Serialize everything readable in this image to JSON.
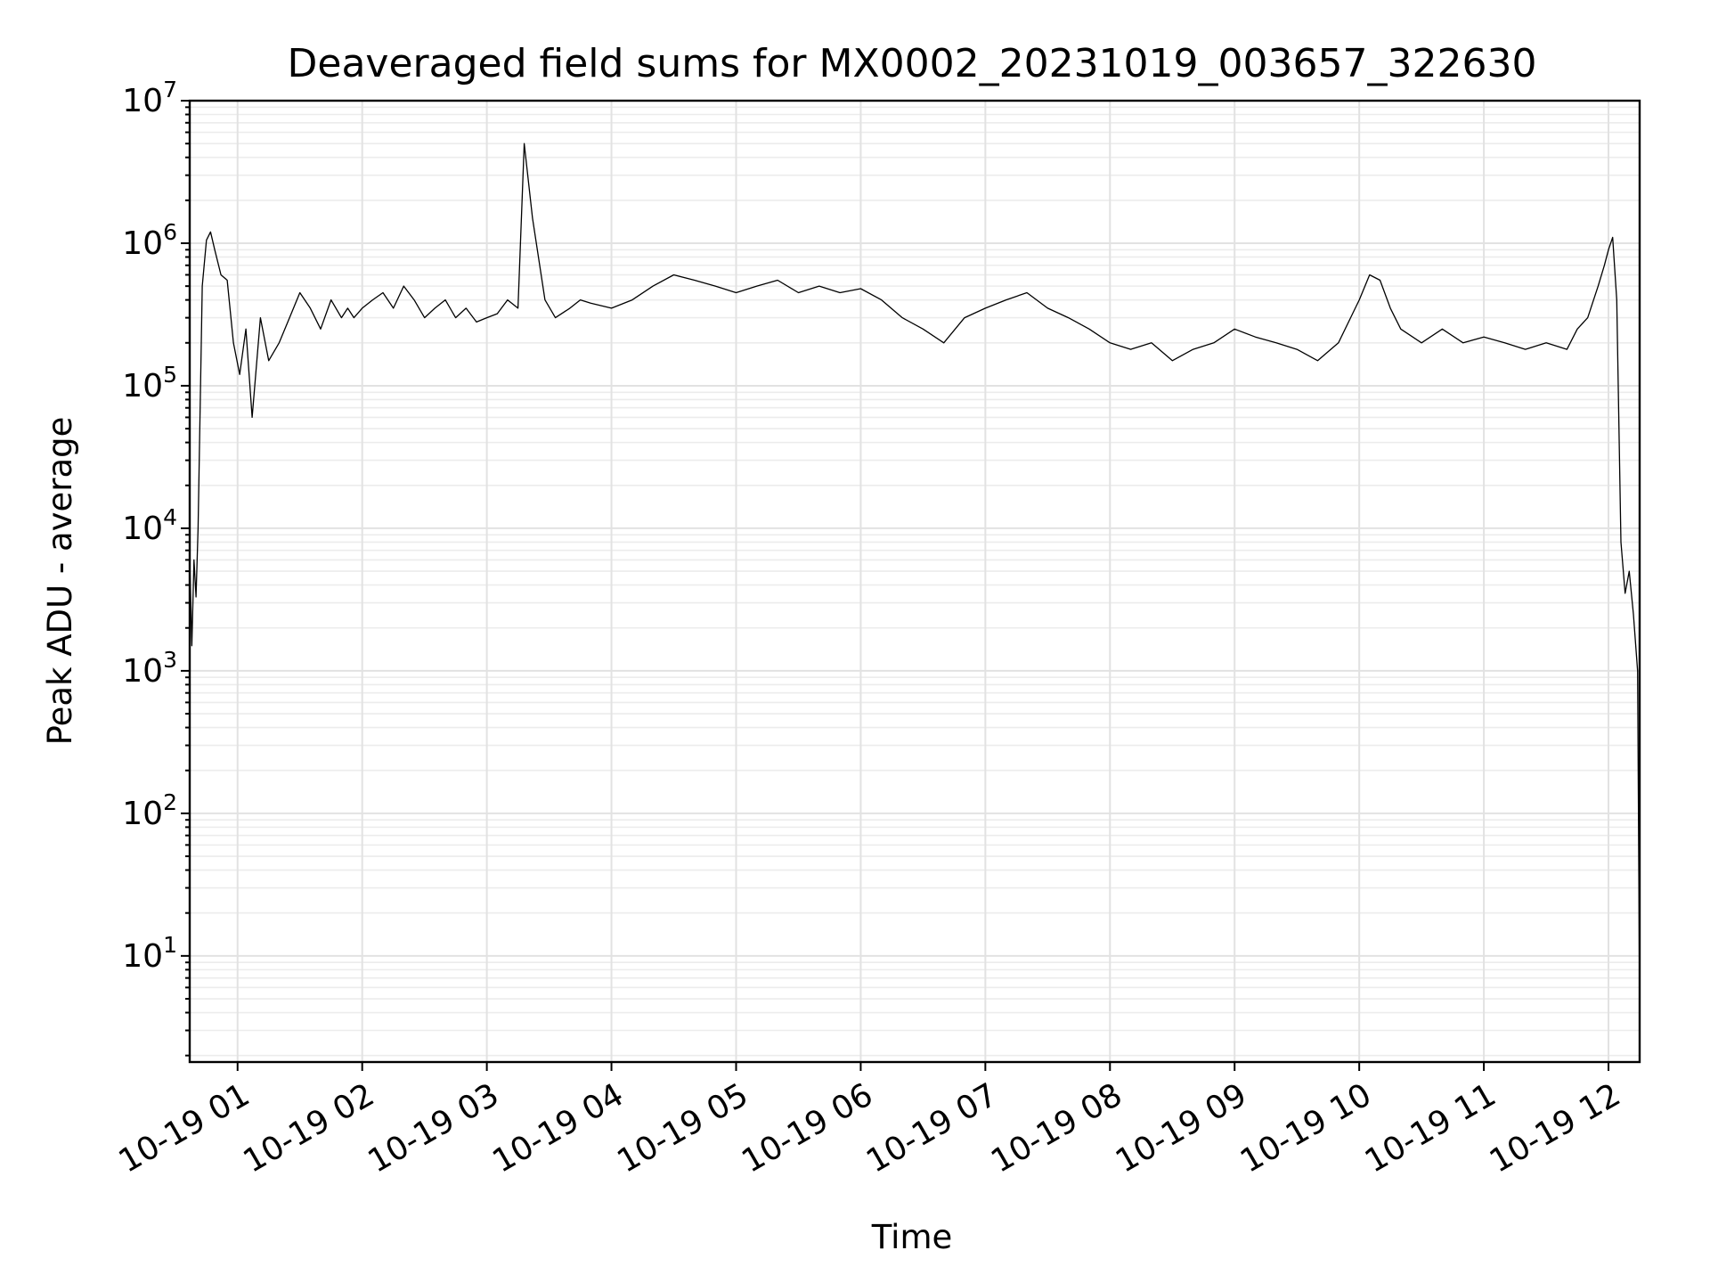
{
  "chart_data": {
    "type": "line",
    "title": "Deaveraged field sums for MX0002_20231019_003657_322630",
    "xlabel": "Time",
    "ylabel": "Peak ADU - average",
    "y_scale": "log",
    "ylim": [
      1.8,
      10000000
    ],
    "xlim": [
      "2023-10-19 00:36:57",
      "2023-10-19 12:15:00"
    ],
    "grid": "major and minor, both axes",
    "legend": "none",
    "line_color": "#000000",
    "x_ticks": [
      {
        "time": "2023-10-19 01:00",
        "label": "10-19 01"
      },
      {
        "time": "2023-10-19 02:00",
        "label": "10-19 02"
      },
      {
        "time": "2023-10-19 03:00",
        "label": "10-19 03"
      },
      {
        "time": "2023-10-19 04:00",
        "label": "10-19 04"
      },
      {
        "time": "2023-10-19 05:00",
        "label": "10-19 05"
      },
      {
        "time": "2023-10-19 06:00",
        "label": "10-19 06"
      },
      {
        "time": "2023-10-19 07:00",
        "label": "10-19 07"
      },
      {
        "time": "2023-10-19 08:00",
        "label": "10-19 08"
      },
      {
        "time": "2023-10-19 09:00",
        "label": "10-19 09"
      },
      {
        "time": "2023-10-19 10:00",
        "label": "10-19 10"
      },
      {
        "time": "2023-10-19 11:00",
        "label": "10-19 11"
      },
      {
        "time": "2023-10-19 12:00",
        "label": "10-19 12"
      }
    ],
    "y_ticks": [
      {
        "value": 10,
        "base": "10",
        "exp": "1"
      },
      {
        "value": 100,
        "base": "10",
        "exp": "2"
      },
      {
        "value": 1000,
        "base": "10",
        "exp": "3"
      },
      {
        "value": 10000,
        "base": "10",
        "exp": "4"
      },
      {
        "value": 100000,
        "base": "10",
        "exp": "5"
      },
      {
        "value": 1000000,
        "base": "10",
        "exp": "6"
      },
      {
        "value": 10000000,
        "base": "10",
        "exp": "7"
      }
    ],
    "series": [
      {
        "x": [
          "2023-10-19 00:37",
          "2023-10-19 00:38",
          "2023-10-19 00:39",
          "2023-10-19 00:40",
          "2023-10-19 00:41",
          "2023-10-19 00:43",
          "2023-10-19 00:45",
          "2023-10-19 00:47",
          "2023-10-19 00:49",
          "2023-10-19 00:52",
          "2023-10-19 00:55",
          "2023-10-19 00:58",
          "2023-10-19 01:01",
          "2023-10-19 01:04",
          "2023-10-19 01:07",
          "2023-10-19 01:11",
          "2023-10-19 01:15",
          "2023-10-19 01:20",
          "2023-10-19 01:25",
          "2023-10-19 01:30",
          "2023-10-19 01:35",
          "2023-10-19 01:40",
          "2023-10-19 01:45",
          "2023-10-19 01:50",
          "2023-10-19 01:53",
          "2023-10-19 01:56",
          "2023-10-19 02:00",
          "2023-10-19 02:05",
          "2023-10-19 02:10",
          "2023-10-19 02:15",
          "2023-10-19 02:20",
          "2023-10-19 02:25",
          "2023-10-19 02:30",
          "2023-10-19 02:35",
          "2023-10-19 02:40",
          "2023-10-19 02:45",
          "2023-10-19 02:50",
          "2023-10-19 02:55",
          "2023-10-19 03:00",
          "2023-10-19 03:05",
          "2023-10-19 03:10",
          "2023-10-19 03:15",
          "2023-10-19 03:18",
          "2023-10-19 03:22",
          "2023-10-19 03:28",
          "2023-10-19 03:33",
          "2023-10-19 03:40",
          "2023-10-19 03:45",
          "2023-10-19 03:50",
          "2023-10-19 04:00",
          "2023-10-19 04:10",
          "2023-10-19 04:20",
          "2023-10-19 04:30",
          "2023-10-19 04:40",
          "2023-10-19 04:50",
          "2023-10-19 05:00",
          "2023-10-19 05:10",
          "2023-10-19 05:20",
          "2023-10-19 05:30",
          "2023-10-19 05:40",
          "2023-10-19 05:50",
          "2023-10-19 06:00",
          "2023-10-19 06:10",
          "2023-10-19 06:20",
          "2023-10-19 06:30",
          "2023-10-19 06:40",
          "2023-10-19 06:50",
          "2023-10-19 07:00",
          "2023-10-19 07:10",
          "2023-10-19 07:20",
          "2023-10-19 07:30",
          "2023-10-19 07:40",
          "2023-10-19 07:50",
          "2023-10-19 08:00",
          "2023-10-19 08:10",
          "2023-10-19 08:20",
          "2023-10-19 08:30",
          "2023-10-19 08:40",
          "2023-10-19 08:50",
          "2023-10-19 09:00",
          "2023-10-19 09:10",
          "2023-10-19 09:20",
          "2023-10-19 09:30",
          "2023-10-19 09:40",
          "2023-10-19 09:50",
          "2023-10-19 10:00",
          "2023-10-19 10:05",
          "2023-10-19 10:10",
          "2023-10-19 10:15",
          "2023-10-19 10:20",
          "2023-10-19 10:30",
          "2023-10-19 10:40",
          "2023-10-19 10:50",
          "2023-10-19 11:00",
          "2023-10-19 11:10",
          "2023-10-19 11:20",
          "2023-10-19 11:30",
          "2023-10-19 11:40",
          "2023-10-19 11:45",
          "2023-10-19 11:50",
          "2023-10-19 11:55",
          "2023-10-19 11:58",
          "2023-10-19 12:00",
          "2023-10-19 12:02",
          "2023-10-19 12:04",
          "2023-10-19 12:06",
          "2023-10-19 12:08",
          "2023-10-19 12:10",
          "2023-10-19 12:12",
          "2023-10-19 12:14",
          "2023-10-19 12:15"
        ],
        "y": [
          6000,
          1500,
          6000,
          3300,
          10000,
          500000,
          1050000,
          1200000,
          900000,
          600000,
          550000,
          200000,
          120000,
          250000,
          60000,
          300000,
          150000,
          200000,
          300000,
          450000,
          350000,
          250000,
          400000,
          300000,
          350000,
          300000,
          350000,
          400000,
          450000,
          350000,
          500000,
          400000,
          300000,
          350000,
          400000,
          300000,
          350000,
          280000,
          300000,
          320000,
          400000,
          350000,
          5000000,
          1500000,
          400000,
          300000,
          350000,
          400000,
          380000,
          350000,
          400000,
          500000,
          600000,
          550000,
          500000,
          450000,
          500000,
          550000,
          450000,
          500000,
          450000,
          480000,
          400000,
          300000,
          250000,
          200000,
          300000,
          350000,
          400000,
          450000,
          350000,
          300000,
          250000,
          200000,
          180000,
          200000,
          150000,
          180000,
          200000,
          250000,
          220000,
          200000,
          180000,
          150000,
          200000,
          400000,
          600000,
          550000,
          350000,
          250000,
          200000,
          250000,
          200000,
          220000,
          200000,
          180000,
          200000,
          180000,
          250000,
          300000,
          500000,
          700000,
          900000,
          1100000,
          400000,
          8000,
          3500,
          5000,
          2500,
          1000,
          4
        ]
      }
    ]
  }
}
